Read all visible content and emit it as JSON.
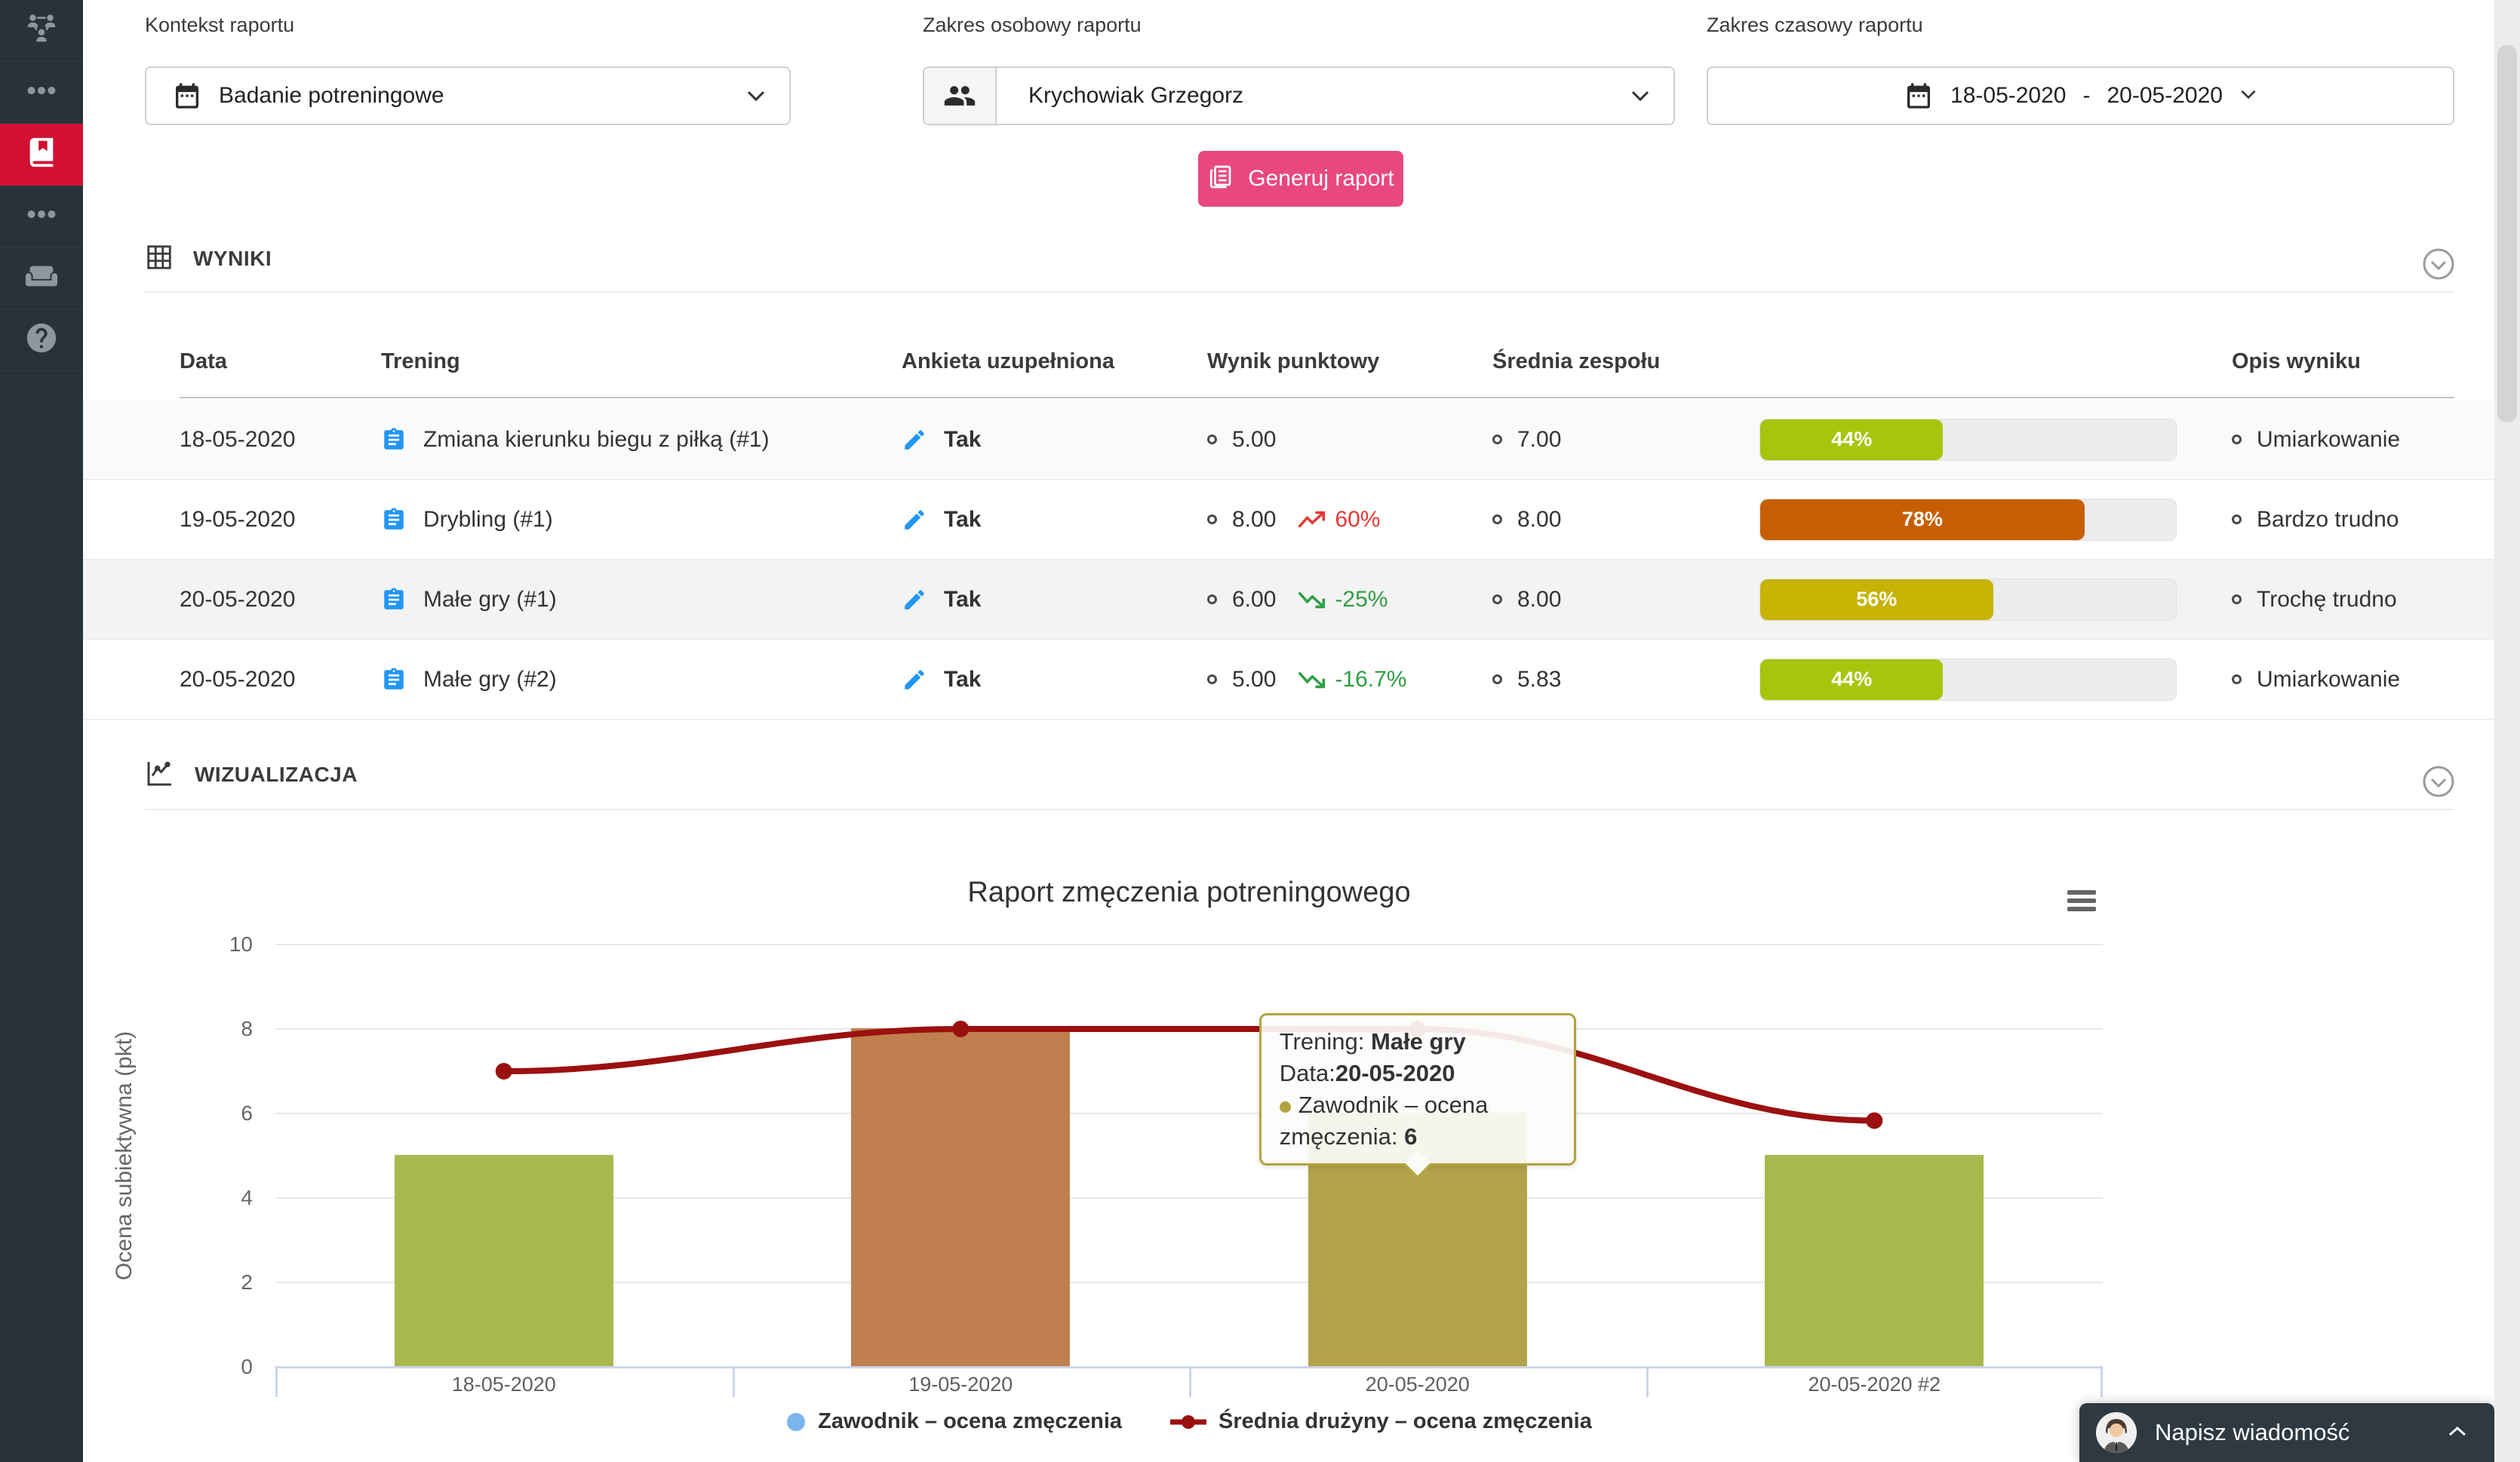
{
  "sidebar": {
    "items": [
      {
        "icon": "team-network-icon",
        "active": false
      },
      {
        "icon": "ellipsis-icon",
        "active": false
      },
      {
        "icon": "book-icon",
        "active": true
      },
      {
        "icon": "ellipsis-icon",
        "active": false
      },
      {
        "icon": "armchair-icon",
        "active": false
      },
      {
        "icon": "help-icon",
        "active": false
      }
    ],
    "active_color": "#d21031"
  },
  "filters": {
    "context": {
      "label": "Kontekst raportu",
      "value": "Badanie potreningowe"
    },
    "person": {
      "label": "Zakres osobowy raportu",
      "value": "Krychowiak Grzegorz"
    },
    "time": {
      "label": "Zakres czasowy raportu",
      "from": "18-05-2020",
      "dash": "-",
      "to": "20-05-2020"
    }
  },
  "generate": {
    "label": "Generuj raport",
    "color": "#e8487e"
  },
  "results": {
    "title": "WYNIKI",
    "columns": [
      "Data",
      "Trening",
      "Ankieta uzupełniona",
      "Wynik punktowy",
      "Średnia zespołu",
      "Opis wyniku"
    ],
    "rows": [
      {
        "date": "18-05-2020",
        "training": "Zmiana kierunku biegu z piłką (#1)",
        "survey": "Tak",
        "score": "5.00",
        "trend": null,
        "team_avg": "7.00",
        "percent": 44,
        "percent_label": "44%",
        "bar_color": "#a6c50d",
        "desc": "Umiarkowanie"
      },
      {
        "date": "19-05-2020",
        "training": "Drybling (#1)",
        "survey": "Tak",
        "score": "8.00",
        "trend": {
          "dir": "up",
          "value": "60%",
          "color": "#e53935"
        },
        "team_avg": "8.00",
        "percent": 78,
        "percent_label": "78%",
        "bar_color": "#c75f02",
        "desc": "Bardzo trudno"
      },
      {
        "date": "20-05-2020",
        "training": "Małe gry (#1)",
        "survey": "Tak",
        "score": "6.00",
        "trend": {
          "dir": "down",
          "value": "-25%",
          "color": "#2e9e44"
        },
        "team_avg": "8.00",
        "percent": 56,
        "percent_label": "56%",
        "bar_color": "#c6b303",
        "desc": "Trochę trudno"
      },
      {
        "date": "20-05-2020",
        "training": "Małe gry (#2)",
        "survey": "Tak",
        "score": "5.00",
        "trend": {
          "dir": "down",
          "value": "-16.7%",
          "color": "#2e9e44"
        },
        "team_avg": "5.83",
        "percent": 44,
        "percent_label": "44%",
        "bar_color": "#a6c50d",
        "desc": "Umiarkowanie"
      }
    ]
  },
  "visualization": {
    "title": "WIZUALIZACJA"
  },
  "chart_data": {
    "type": "bar",
    "title": "Raport zmęczenia potreningowego",
    "categories": [
      "18-05-2020",
      "19-05-2020",
      "20-05-2020",
      "20-05-2020 #2"
    ],
    "series": [
      {
        "name": "Zawodnik – ocena zmęczenia",
        "type": "bar",
        "values": [
          5,
          8,
          6,
          5
        ],
        "colors": [
          "#a9b84d",
          "#bf7f4e",
          "#b2a24b",
          "#a9b84d"
        ],
        "legend_marker_color": "#7cb5ec"
      },
      {
        "name": "Średnia drużyny – ocena zmęczenia",
        "type": "line",
        "values": [
          7,
          8,
          8,
          5.83
        ],
        "color": "#9c1010"
      }
    ],
    "xlabel": "",
    "ylabel": "Ocena subiektywna (pkt)",
    "ylim": [
      0,
      10
    ],
    "yticks": [
      0,
      2,
      4,
      6,
      8,
      10
    ],
    "grid": true,
    "legend_position": "bottom",
    "tooltip": {
      "training_label": "Trening: ",
      "training": "Małe gry",
      "date_label": "Data:",
      "date": "20-05-2020",
      "series_label": "Zawodnik – ocena zmęczenia: ",
      "value": "6",
      "border_color": "#b3a33f",
      "point_index": 2
    }
  },
  "chat": {
    "label": "Napisz wiadomość"
  }
}
